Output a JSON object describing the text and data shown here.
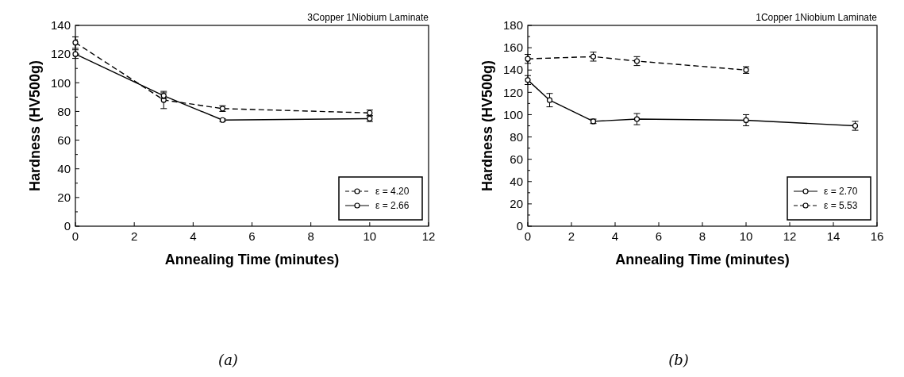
{
  "chart_data": [
    {
      "type": "line",
      "title": "3Copper 1Niobium Laminate",
      "xlabel": "Annealing Time (minutes)",
      "ylabel": "Hardness (HV500g)",
      "annotations": [
        "(a)"
      ],
      "xlim": [
        0,
        12
      ],
      "xticks": [
        0,
        2,
        4,
        6,
        8,
        10,
        12
      ],
      "ylim": [
        0,
        140
      ],
      "yticks": [
        0,
        20,
        40,
        60,
        80,
        100,
        120,
        140
      ],
      "grid": false,
      "legend": "bottom right",
      "marker": "circle",
      "series": [
        {
          "name": "ε = 4.20",
          "color": "#000000",
          "line_style": "dashed",
          "x": [
            0,
            3,
            5,
            10
          ],
          "values": [
            128,
            88,
            82,
            79
          ],
          "errors": [
            4,
            6,
            2,
            2
          ]
        },
        {
          "name": "ε = 2.66",
          "color": "#000000",
          "line_style": "solid",
          "x": [
            0,
            3,
            5,
            10
          ],
          "values": [
            120,
            91,
            74,
            75
          ],
          "errors": [
            3,
            2,
            1,
            2
          ]
        }
      ]
    },
    {
      "type": "line",
      "title": "1Copper 1Niobium Laminate",
      "xlabel": "Annealing Time (minutes)",
      "ylabel": "Hardness (HV500g)",
      "annotations": [
        "(b)"
      ],
      "xlim": [
        0,
        16
      ],
      "xticks": [
        0,
        2,
        4,
        6,
        8,
        10,
        12,
        14,
        16
      ],
      "ylim": [
        0,
        180
      ],
      "yticks": [
        0,
        20,
        40,
        60,
        80,
        100,
        120,
        140,
        160,
        180
      ],
      "grid": false,
      "legend": "bottom right",
      "marker": "circle",
      "series": [
        {
          "name": "ε = 2.70",
          "color": "#000000",
          "line_style": "solid",
          "x": [
            0,
            1,
            3,
            5,
            10,
            15
          ],
          "values": [
            131,
            113,
            94,
            96,
            95,
            90
          ],
          "errors": [
            4,
            6,
            2,
            5,
            5,
            4
          ]
        },
        {
          "name": "ε = 5.53",
          "color": "#000000",
          "line_style": "dashed",
          "x": [
            0,
            3,
            5,
            10
          ],
          "values": [
            150,
            152,
            148,
            140
          ],
          "errors": [
            4,
            4,
            4,
            3
          ]
        }
      ]
    }
  ]
}
